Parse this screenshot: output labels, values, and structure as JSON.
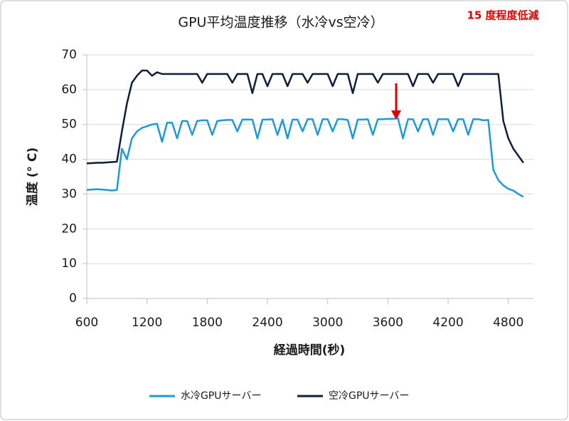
{
  "chart_data": {
    "type": "line",
    "title": "GPU平均温度推移（水冷vs空冷）",
    "annotation": "15 度程度低減",
    "x_label": "経過時間(秒)",
    "y_label": "温度 (° C)",
    "x": [
      600,
      650,
      700,
      750,
      800,
      850,
      900,
      950,
      1000,
      1050,
      1100,
      1150,
      1200,
      1250,
      1300,
      1350,
      1400,
      1450,
      1500,
      1550,
      1600,
      1650,
      1700,
      1750,
      1800,
      1850,
      1900,
      1950,
      2000,
      2050,
      2100,
      2150,
      2200,
      2250,
      2300,
      2350,
      2400,
      2450,
      2500,
      2550,
      2600,
      2650,
      2700,
      2750,
      2800,
      2850,
      2900,
      2950,
      3000,
      3050,
      3100,
      3150,
      3200,
      3250,
      3300,
      3350,
      3400,
      3450,
      3500,
      3550,
      3600,
      3650,
      3700,
      3750,
      3800,
      3850,
      3900,
      3950,
      4000,
      4050,
      4100,
      4150,
      4200,
      4250,
      4300,
      4350,
      4400,
      4450,
      4500,
      4550,
      4600,
      4650,
      4700,
      4750,
      4800,
      4850,
      4900,
      4950
    ],
    "series": [
      {
        "name": "水冷GPUサーバー",
        "color": "#1e9ad6",
        "values": [
          31.2,
          31.3,
          31.4,
          31.3,
          31.2,
          31,
          31.2,
          43,
          40,
          46,
          48,
          49,
          49.5,
          50,
          50.2,
          45,
          50.5,
          50.5,
          46,
          51,
          51,
          47,
          51,
          51.2,
          51.2,
          47,
          51,
          51.2,
          51.3,
          51.3,
          48,
          51.4,
          51.4,
          51.4,
          46,
          51.4,
          51.4,
          51.5,
          47,
          51.4,
          46,
          51.4,
          51.4,
          48,
          51.5,
          51.5,
          47,
          51.5,
          51.5,
          48,
          51.5,
          51.5,
          51.3,
          46,
          51.4,
          51.4,
          51.5,
          47,
          51.5,
          51.5,
          51.6,
          51.6,
          51.8,
          46,
          51.5,
          51.5,
          48,
          51.5,
          51.5,
          47,
          51.5,
          51.5,
          51.5,
          48,
          51.5,
          51.5,
          47,
          51.5,
          51.5,
          51.2,
          51.3,
          37,
          34,
          32.5,
          31.5,
          31,
          30,
          29.2
        ]
      },
      {
        "name": "空冷GPUサーバー",
        "color": "#0d1f3c",
        "values": [
          38.8,
          38.9,
          39,
          39,
          39.1,
          39.2,
          39.3,
          48,
          56,
          62,
          64,
          65.5,
          65.5,
          64,
          65,
          64.5,
          64.5,
          64.5,
          64.5,
          64.5,
          64.5,
          64.5,
          64.5,
          62,
          64.5,
          64.5,
          64.5,
          64.5,
          64.5,
          62,
          64.5,
          64.5,
          64.5,
          59,
          64.5,
          64.5,
          61,
          64.5,
          64.5,
          64.5,
          61,
          64.5,
          64.5,
          64.5,
          62,
          64.5,
          64.5,
          64.5,
          64.5,
          61,
          64.5,
          64.5,
          64.5,
          59,
          64.5,
          64.5,
          64.5,
          64.5,
          62,
          64.5,
          64.5,
          64.5,
          64.5,
          64.5,
          64.5,
          61,
          64.5,
          64.5,
          64.5,
          62,
          64.5,
          64.5,
          64.5,
          64.5,
          61,
          64.5,
          64.5,
          64.5,
          64.5,
          64.5,
          64.5,
          64.5,
          64.5,
          51,
          46,
          43,
          41,
          39
        ]
      }
    ],
    "xlim": [
      600,
      5050
    ],
    "xticks": [
      600,
      1200,
      1800,
      2400,
      3000,
      3600,
      4200,
      4800
    ],
    "ylim": [
      0,
      70
    ],
    "yticks": [
      0,
      10,
      20,
      30,
      40,
      50,
      60,
      70
    ],
    "grid": true
  }
}
